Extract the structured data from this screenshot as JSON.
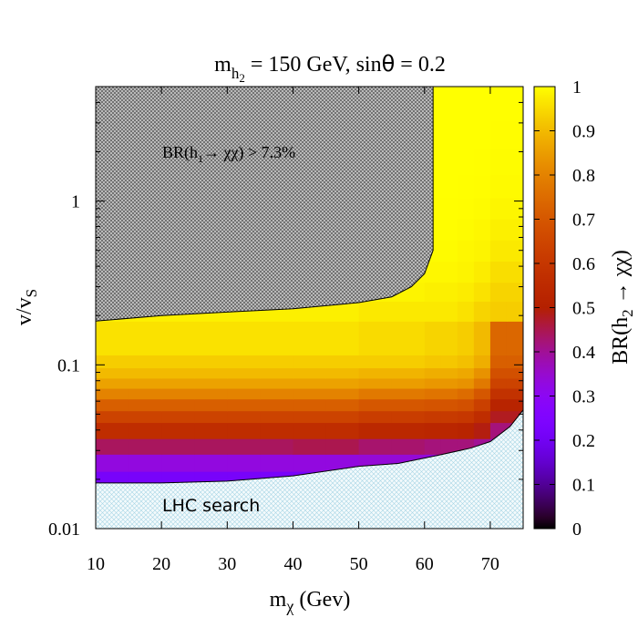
{
  "chart_data": {
    "type": "heatmap",
    "title_main": "m",
    "title_sub": "h",
    "title_subsub": "2",
    "title_rest": " = 150 GeV, sin",
    "title_theta": "θ",
    "title_end": " = 0.2",
    "xlabel_main": "m",
    "xlabel_sub": "χ",
    "xlabel_rest": " (Gev)",
    "ylabel_main": "v/v",
    "ylabel_sub": "S",
    "cblabel_main": "BR(h",
    "cblabel_sub": "2",
    "cblabel_rest": " → χχ)",
    "x_range": [
      10,
      75
    ],
    "y_range": [
      0.01,
      5
    ],
    "y_scale": "log",
    "x_ticks": [
      10,
      20,
      30,
      40,
      50,
      60,
      70
    ],
    "x_tick_labels": [
      "10",
      "20",
      "30",
      "40",
      "50",
      "60",
      "70"
    ],
    "y_ticks": [
      0.01,
      0.1,
      1
    ],
    "y_tick_labels": [
      "0.01",
      "0.1",
      "1"
    ],
    "cb_range": [
      0,
      1
    ],
    "cb_ticks": [
      0,
      0.1,
      0.2,
      0.3,
      0.4,
      0.5,
      0.6,
      0.7,
      0.8,
      0.9,
      1
    ],
    "cb_tick_labels": [
      "0",
      "0.1",
      "0.2",
      "0.3",
      "0.4",
      "0.5",
      "0.6",
      "0.7",
      "0.8",
      "0.9",
      "1"
    ],
    "colormap": "gnuplot rgbformulae 7,5,15 (black-blue-purple-red-yellow-white)",
    "annotations": {
      "excluded_region_label_a": "BR(h",
      "excluded_region_label_sub": "1",
      "excluded_region_label_b": "→ χχ) > 7.3%",
      "lhc_region_label": "LHC search"
    },
    "excluded_boundary_invisible": {
      "description": "upper-left hatched region boundary (m_chi, v/vS)",
      "points": [
        [
          10,
          0.185
        ],
        [
          20,
          0.2
        ],
        [
          30,
          0.21
        ],
        [
          40,
          0.22
        ],
        [
          50,
          0.24
        ],
        [
          55,
          0.26
        ],
        [
          58,
          0.3
        ],
        [
          60,
          0.36
        ],
        [
          61.3,
          0.5
        ],
        [
          61.3,
          5
        ]
      ]
    },
    "lhc_boundary": {
      "points": [
        [
          10,
          0.019
        ],
        [
          20,
          0.019
        ],
        [
          30,
          0.0195
        ],
        [
          40,
          0.021
        ],
        [
          50,
          0.024
        ],
        [
          56,
          0.025
        ],
        [
          62,
          0.028
        ],
        [
          67,
          0.031
        ],
        [
          70,
          0.034
        ],
        [
          73,
          0.042
        ],
        [
          75,
          0.053
        ]
      ]
    },
    "x_edges": [
      10,
      15,
      20,
      25,
      30,
      35,
      40,
      45,
      50,
      55,
      60,
      62.5,
      65,
      67.5,
      70,
      72.5,
      75
    ],
    "y_edges": [
      0.0186,
      0.0224,
      0.0285,
      0.0355,
      0.0445,
      0.0525,
      0.062,
      0.072,
      0.083,
      0.096,
      0.115,
      0.185,
      0.245,
      0.32,
      0.43,
      0.58,
      0.78,
      1.05,
      1.45,
      2.1,
      3.1,
      5
    ],
    "br_rows": [
      [
        0.22,
        0.22,
        0.22,
        0.22,
        0.22,
        0.22,
        0.22,
        0.22,
        0.22,
        0.22,
        0.22,
        0.22,
        0.22,
        0.22,
        0.22,
        0.22
      ],
      [
        0.33,
        0.33,
        0.33,
        0.33,
        0.33,
        0.33,
        0.33,
        0.33,
        0.34,
        0.34,
        0.33,
        0.33,
        0.33,
        0.32,
        0.3,
        0.3
      ],
      [
        0.44,
        0.44,
        0.44,
        0.44,
        0.44,
        0.44,
        0.45,
        0.45,
        0.43,
        0.43,
        0.42,
        0.42,
        0.42,
        0.4,
        0.36,
        0.36
      ],
      [
        0.56,
        0.56,
        0.56,
        0.56,
        0.56,
        0.56,
        0.56,
        0.56,
        0.54,
        0.54,
        0.53,
        0.53,
        0.52,
        0.49,
        0.42,
        0.42
      ],
      [
        0.64,
        0.64,
        0.64,
        0.64,
        0.64,
        0.64,
        0.64,
        0.64,
        0.62,
        0.62,
        0.61,
        0.61,
        0.6,
        0.56,
        0.48,
        0.48
      ],
      [
        0.72,
        0.72,
        0.72,
        0.72,
        0.72,
        0.72,
        0.72,
        0.72,
        0.7,
        0.7,
        0.69,
        0.69,
        0.68,
        0.63,
        0.52,
        0.52
      ],
      [
        0.8,
        0.8,
        0.8,
        0.8,
        0.8,
        0.8,
        0.8,
        0.8,
        0.78,
        0.78,
        0.77,
        0.77,
        0.75,
        0.7,
        0.58,
        0.58
      ],
      [
        0.86,
        0.86,
        0.86,
        0.86,
        0.86,
        0.86,
        0.86,
        0.86,
        0.85,
        0.85,
        0.84,
        0.84,
        0.83,
        0.78,
        0.64,
        0.64
      ],
      [
        0.9,
        0.9,
        0.9,
        0.9,
        0.9,
        0.9,
        0.9,
        0.9,
        0.89,
        0.89,
        0.88,
        0.88,
        0.87,
        0.83,
        0.68,
        0.68
      ],
      [
        0.93,
        0.93,
        0.93,
        0.93,
        0.93,
        0.93,
        0.93,
        0.93,
        0.93,
        0.93,
        0.92,
        0.92,
        0.91,
        0.88,
        0.72,
        0.72
      ],
      [
        0.96,
        0.96,
        0.96,
        0.96,
        0.96,
        0.96,
        0.96,
        0.96,
        0.95,
        0.95,
        0.94,
        0.94,
        0.93,
        0.9,
        0.74,
        0.74
      ],
      [
        0.98,
        0.98,
        0.98,
        0.98,
        0.98,
        0.98,
        0.98,
        0.98,
        0.97,
        0.97,
        0.97,
        0.97,
        0.96,
        0.94,
        0.93,
        0.93
      ],
      [
        0.99,
        0.99,
        0.99,
        0.99,
        0.99,
        0.99,
        0.99,
        0.99,
        0.985,
        0.985,
        0.98,
        0.98,
        0.975,
        0.96,
        0.94,
        0.94
      ],
      [
        0.995,
        0.995,
        0.995,
        0.995,
        0.995,
        0.995,
        0.995,
        0.995,
        0.99,
        0.99,
        0.99,
        0.99,
        0.985,
        0.975,
        0.955,
        0.955
      ],
      [
        0.998,
        0.998,
        0.998,
        0.998,
        0.998,
        0.998,
        0.998,
        0.998,
        0.995,
        0.995,
        0.995,
        0.995,
        0.99,
        0.985,
        0.97,
        0.97
      ],
      [
        1,
        1,
        1,
        1,
        1,
        1,
        1,
        1,
        0.998,
        0.998,
        0.997,
        0.997,
        0.995,
        0.99,
        0.98,
        0.98
      ],
      [
        1,
        1,
        1,
        1,
        1,
        1,
        1,
        1,
        1,
        1,
        0.999,
        0.999,
        0.998,
        0.995,
        0.988,
        0.988
      ],
      [
        1,
        1,
        1,
        1,
        1,
        1,
        1,
        1,
        1,
        1,
        1,
        1,
        0.999,
        0.998,
        0.993,
        0.993
      ],
      [
        1,
        1,
        1,
        1,
        1,
        1,
        1,
        1,
        1,
        1,
        1,
        1,
        1,
        0.999,
        0.996,
        0.996
      ],
      [
        1,
        1,
        1,
        1,
        1,
        1,
        1,
        1,
        1,
        1,
        1,
        1,
        1,
        1,
        0.998,
        0.998
      ],
      [
        1,
        1,
        1,
        1,
        1,
        1,
        1,
        1,
        1,
        1,
        1,
        1,
        1,
        1,
        0.999,
        0.999
      ]
    ],
    "colors": {
      "excluded_fill": "#bdbdbd",
      "lhc_fill": "#e6f4f8",
      "frame": "#000000"
    }
  }
}
